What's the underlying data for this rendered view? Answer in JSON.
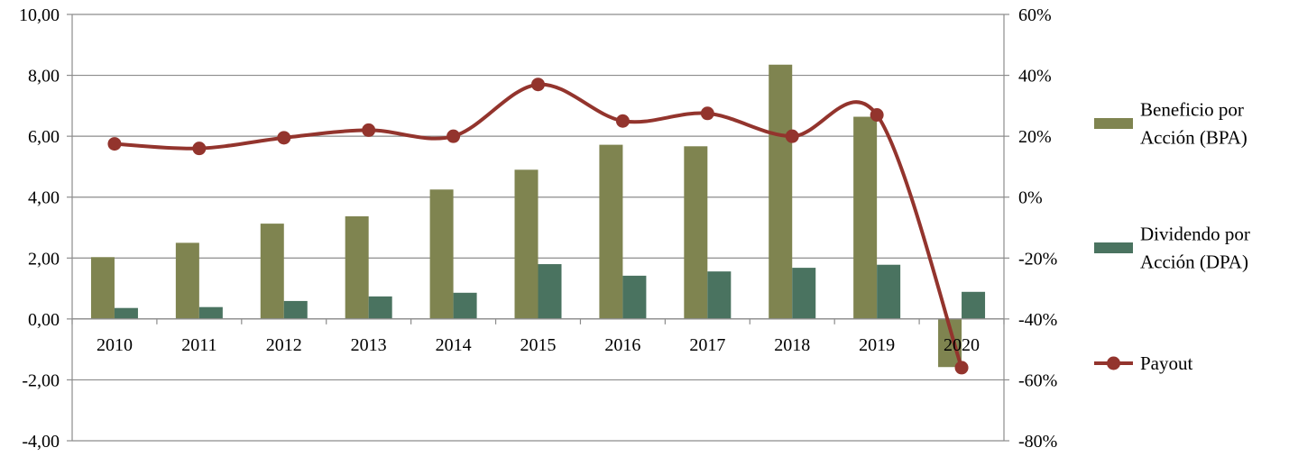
{
  "chart_data": {
    "type": "bar",
    "categories": [
      "2010",
      "2011",
      "2012",
      "2013",
      "2014",
      "2015",
      "2016",
      "2017",
      "2018",
      "2019",
      "2020"
    ],
    "series": [
      {
        "name": "Beneficio por Acción (BPA)",
        "type": "bar",
        "axis": "left",
        "color": "#7f8450",
        "values": [
          2.03,
          2.5,
          3.13,
          3.37,
          4.25,
          4.9,
          5.72,
          5.67,
          8.35,
          6.64,
          -1.58
        ]
      },
      {
        "name": "Dividendo por Acción (DPA)",
        "type": "bar",
        "axis": "left",
        "color": "#4a7360",
        "values": [
          0.36,
          0.39,
          0.59,
          0.74,
          0.86,
          1.8,
          1.42,
          1.56,
          1.68,
          1.78,
          0.89
        ]
      },
      {
        "name": "Payout",
        "type": "line",
        "axis": "right",
        "color": "#93342d",
        "values": [
          17.5,
          16.0,
          19.5,
          22.0,
          20.0,
          37.0,
          25.0,
          27.5,
          20.0,
          27.0,
          -56.0
        ]
      }
    ],
    "y_left": {
      "ylim": [
        -4,
        10
      ],
      "ticks": [
        "10,00",
        "8,00",
        "6,00",
        "4,00",
        "2,00",
        "0,00",
        "-2,00",
        "-4,00"
      ]
    },
    "y_right": {
      "ylim": [
        -80,
        60
      ],
      "ticks": [
        "60%",
        "40%",
        "20%",
        "0%",
        "-20%",
        "-40%",
        "-60%",
        "-80%"
      ]
    },
    "legend": {
      "position": "right",
      "entries": [
        {
          "lines": [
            "Beneficio por",
            "Acción (BPA)"
          ]
        },
        {
          "lines": [
            "Dividendo por",
            "Acción (DPA)"
          ]
        },
        {
          "lines": [
            "Payout"
          ]
        }
      ]
    },
    "grid": true
  }
}
